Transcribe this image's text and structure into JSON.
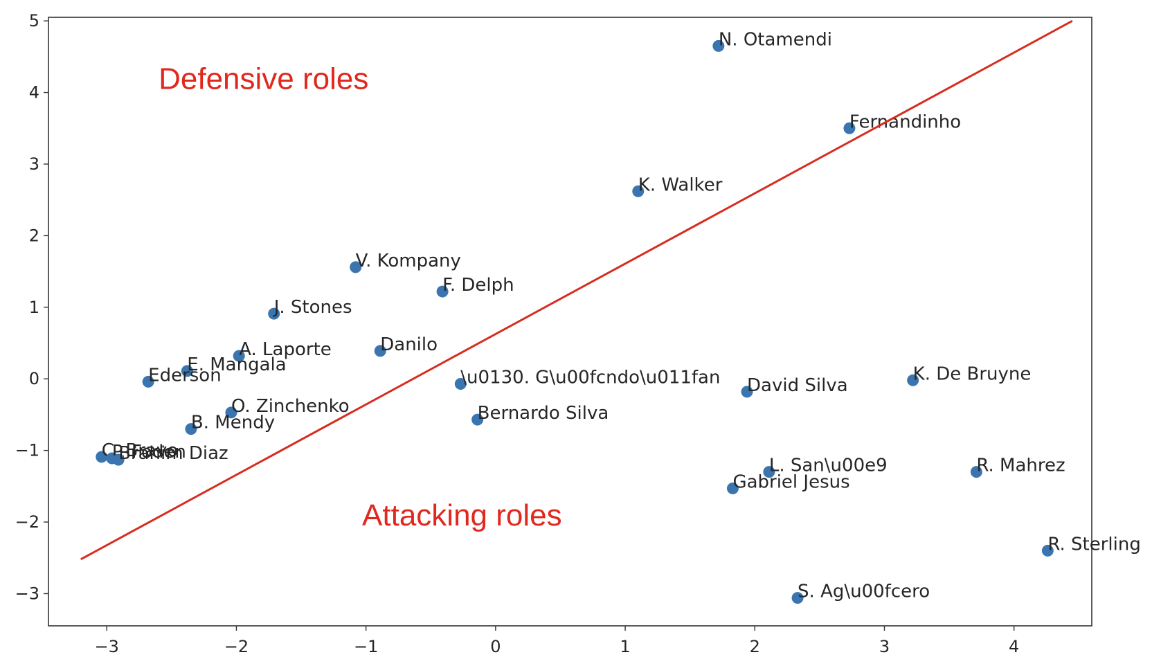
{
  "chart_data": {
    "type": "scatter",
    "title": "",
    "xlabel": "",
    "ylabel": "",
    "xlim": [
      -3.45,
      4.6
    ],
    "ylim": [
      -3.45,
      5.05
    ],
    "xticks": [
      -3,
      -2,
      -1,
      0,
      1,
      2,
      3,
      4
    ],
    "yticks": [
      -3,
      -2,
      -1,
      0,
      1,
      2,
      3,
      4,
      5
    ],
    "xtick_labels": [
      "−3",
      "−2",
      "−1",
      "0",
      "1",
      "2",
      "3",
      "4"
    ],
    "ytick_labels": [
      "−3",
      "−2",
      "−1",
      "0",
      "1",
      "2",
      "3",
      "4",
      "5"
    ],
    "grid": false,
    "point_color": "#3b75af",
    "line_color": "#d62d20",
    "annotation_color": "#e0281e",
    "points": [
      {
        "label": "N. Otamendi",
        "x": 1.72,
        "y": 4.65
      },
      {
        "label": "Fernandinho",
        "x": 2.73,
        "y": 3.5
      },
      {
        "label": "K. Walker",
        "x": 1.1,
        "y": 2.62
      },
      {
        "label": "V. Kompany",
        "x": -1.08,
        "y": 1.56
      },
      {
        "label": "F. Delph",
        "x": -0.41,
        "y": 1.22
      },
      {
        "label": "J. Stones",
        "x": -1.71,
        "y": 0.91
      },
      {
        "label": "Danilo",
        "x": -0.89,
        "y": 0.39
      },
      {
        "label": "A. Laporte",
        "x": -1.98,
        "y": 0.32
      },
      {
        "label": "E. Mangala",
        "x": -2.38,
        "y": 0.11
      },
      {
        "label": "Ederson",
        "x": -2.68,
        "y": -0.04
      },
      {
        "label": "\\u0130. G\\u00fcndo\\u011fan",
        "x": -0.27,
        "y": -0.07
      },
      {
        "label": "David Silva",
        "x": 1.94,
        "y": -0.18
      },
      {
        "label": "K. De Bruyne",
        "x": 3.22,
        "y": -0.02
      },
      {
        "label": "O. Zinchenko",
        "x": -2.04,
        "y": -0.47
      },
      {
        "label": "Bernardo Silva",
        "x": -0.14,
        "y": -0.57
      },
      {
        "label": "B. Mendy",
        "x": -2.35,
        "y": -0.7
      },
      {
        "label": "C. Bravo",
        "x": -3.04,
        "y": -1.09
      },
      {
        "label": "P. Foden",
        "x": -2.96,
        "y": -1.11
      },
      {
        "label": "Brahim Diaz",
        "x": -2.91,
        "y": -1.13
      },
      {
        "label": "L. San\\u00e9",
        "x": 2.11,
        "y": -1.3
      },
      {
        "label": "R. Mahrez",
        "x": 3.71,
        "y": -1.3
      },
      {
        "label": "Gabriel Jesus",
        "x": 1.83,
        "y": -1.53
      },
      {
        "label": "R. Sterling",
        "x": 4.26,
        "y": -2.4
      },
      {
        "label": "S. Ag\\u00fcero",
        "x": 2.33,
        "y": -3.06
      }
    ],
    "divider_line": {
      "x": [
        -3.2,
        4.45
      ],
      "y": [
        -2.52,
        5.0
      ]
    },
    "annotations": [
      {
        "text": "Defensive roles",
        "x": -2.6,
        "y": 4.05
      },
      {
        "text": "Attacking roles",
        "x": -1.03,
        "y": -2.05
      }
    ]
  }
}
